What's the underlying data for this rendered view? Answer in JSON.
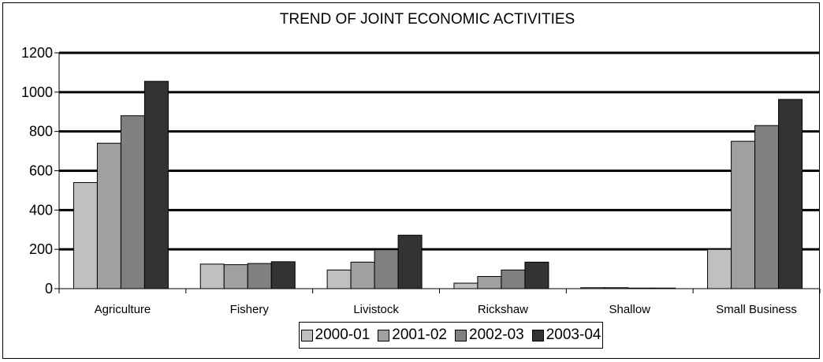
{
  "chart_data": {
    "type": "bar",
    "title": "TREND OF JOINT ECONOMIC ACTIVITIES",
    "xlabel": "",
    "ylabel": "",
    "ylim": [
      0,
      1200
    ],
    "yticks": [
      "0",
      "200",
      "400",
      "600",
      "800",
      "1000",
      "1200"
    ],
    "grid": true,
    "legend_position": "bottom",
    "categories": [
      "Agriculture",
      "Fishery",
      "Livistock",
      "Rickshaw",
      "Shallow",
      "Small Business"
    ],
    "series": [
      {
        "name": "2000-01",
        "color": "#c0c0c0",
        "values": [
          540,
          125,
          95,
          28,
          5,
          200
        ]
      },
      {
        "name": "2001-02",
        "color": "#a0a0a0",
        "values": [
          740,
          122,
          135,
          62,
          5,
          750
        ]
      },
      {
        "name": "2002-03",
        "color": "#808080",
        "values": [
          880,
          128,
          198,
          95,
          3,
          830
        ]
      },
      {
        "name": "2003-04",
        "color": "#333333",
        "values": [
          1055,
          137,
          272,
          135,
          3,
          963
        ]
      }
    ]
  }
}
